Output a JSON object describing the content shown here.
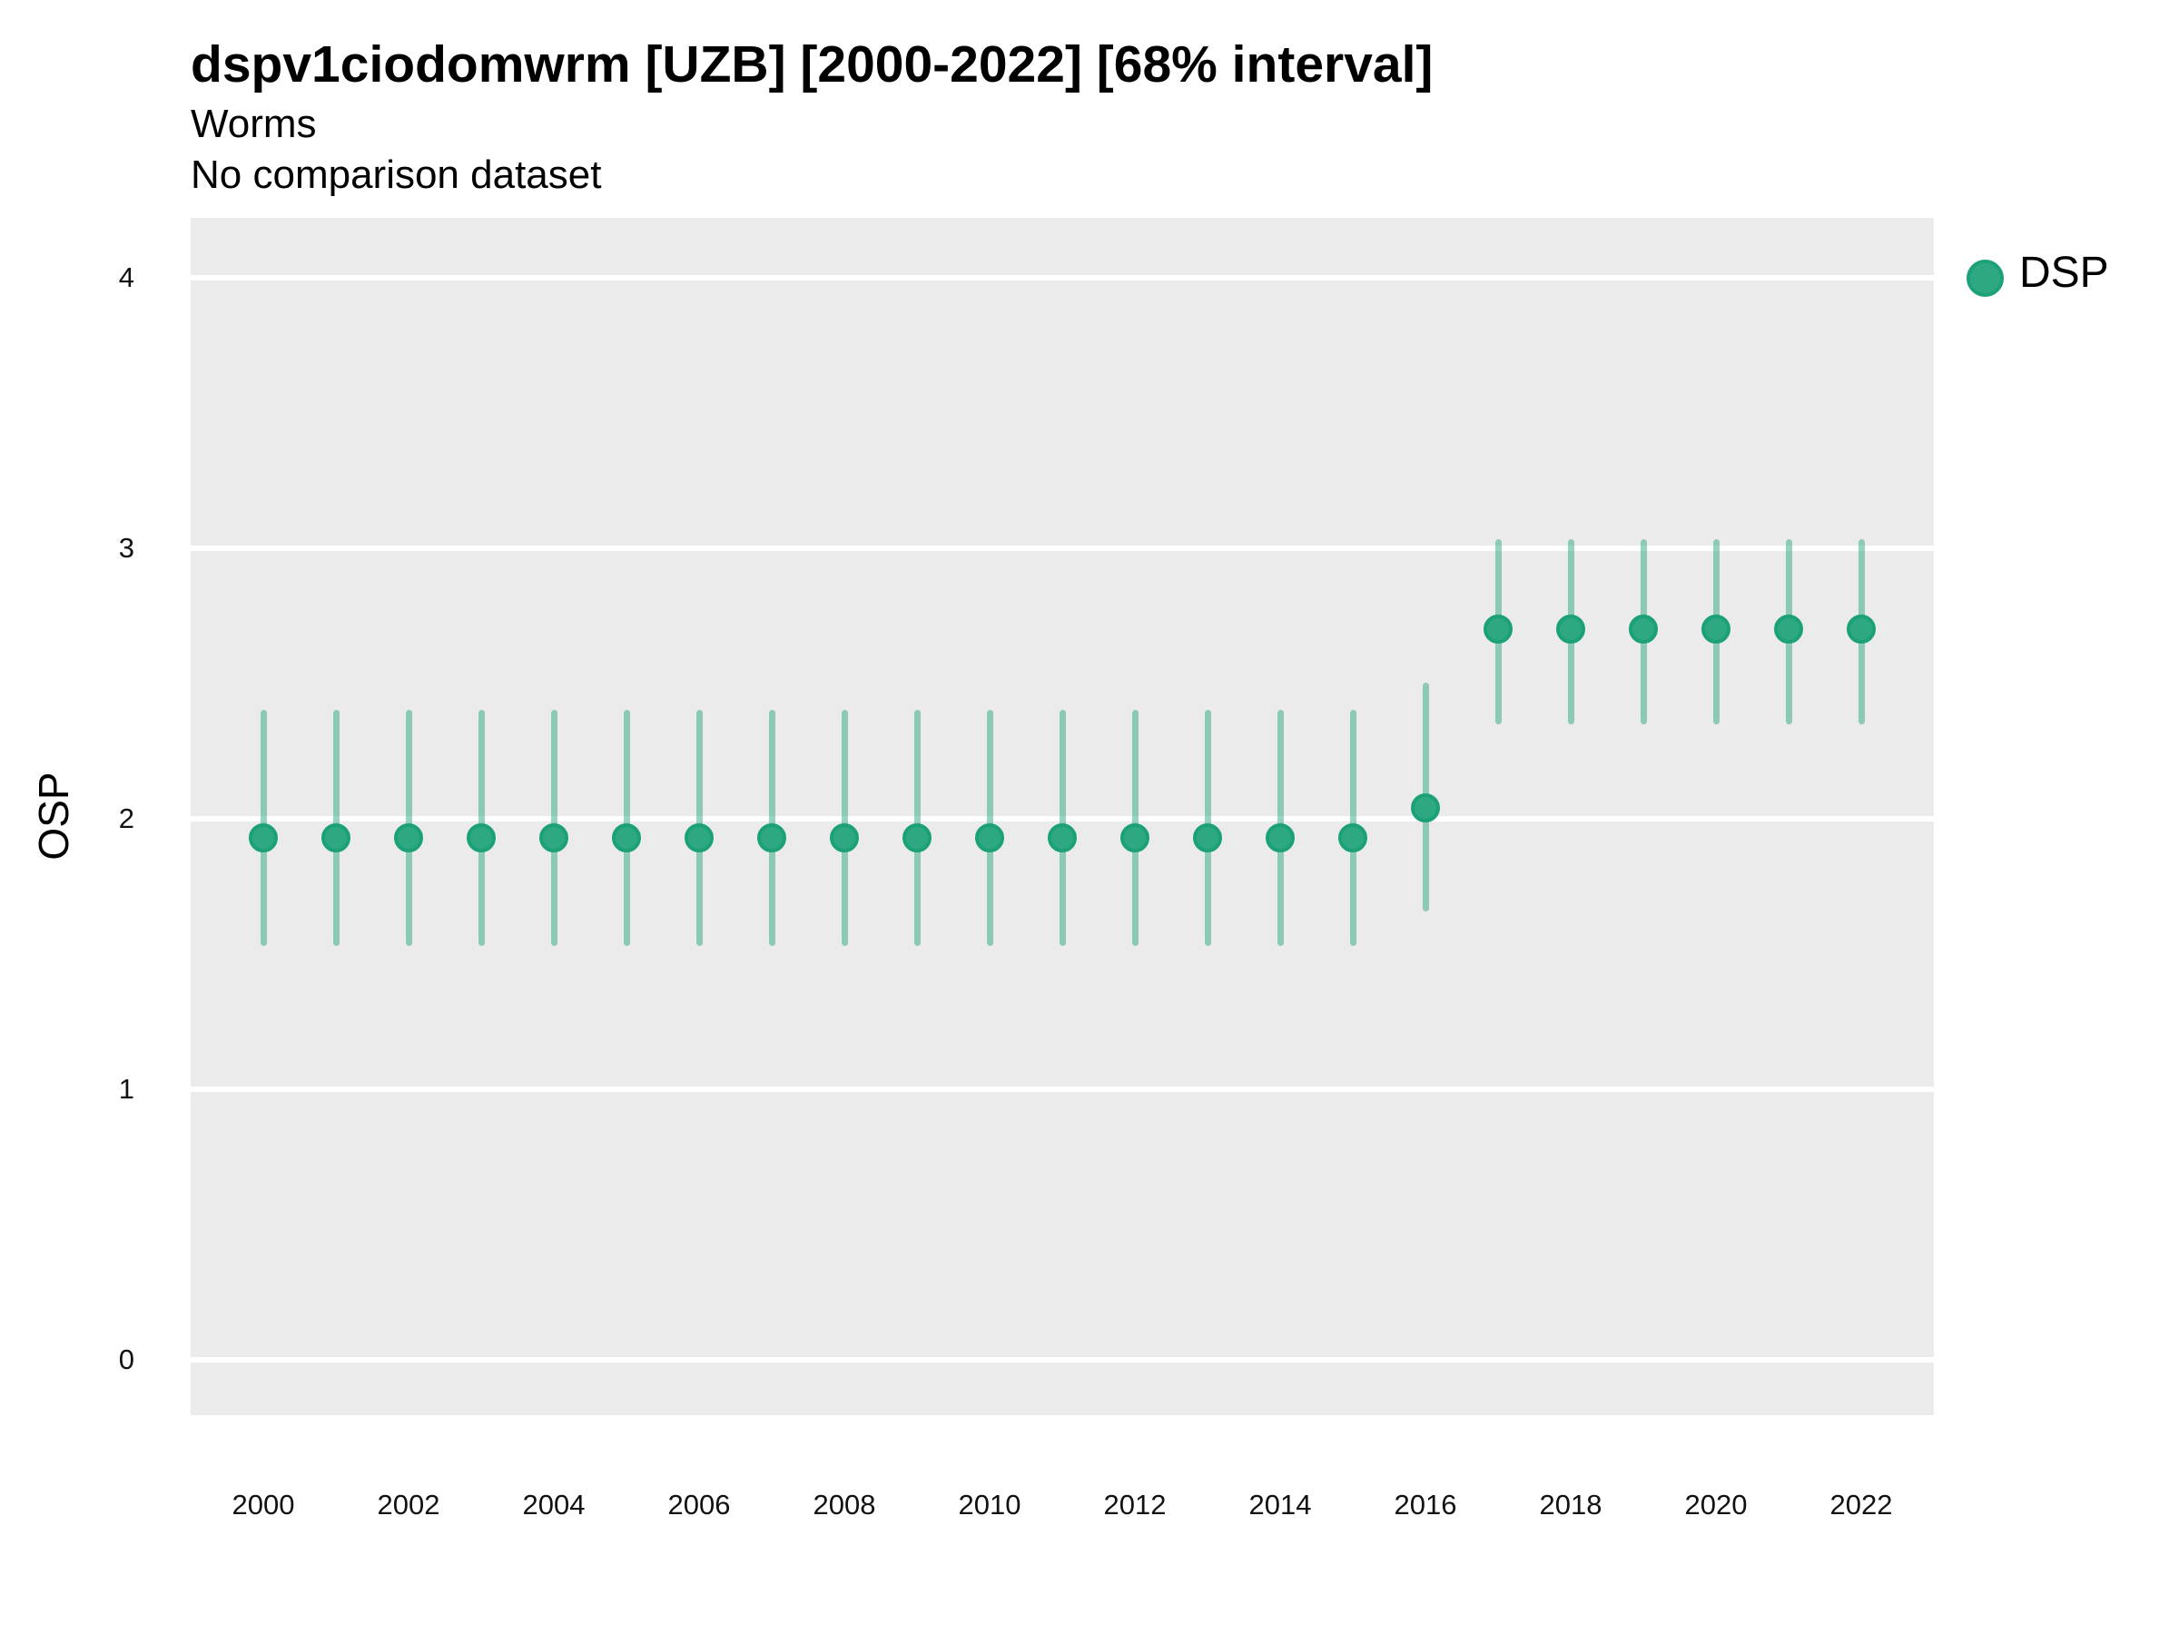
{
  "header": {
    "title": "dspv1ciodomwrm [UZB] [2000-2022] [68% interval]",
    "subtitle": "Worms",
    "note": "No comparison dataset"
  },
  "legend": {
    "position": "right-top",
    "items": [
      {
        "label": "DSP",
        "color": "#2EA883"
      }
    ]
  },
  "chart_data": {
    "type": "scatter",
    "title": "dspv1ciodomwrm [UZB] [2000-2022] [68% interval]",
    "subtitle": "Worms",
    "note": "No comparison dataset",
    "interval": "68%",
    "xlabel": "",
    "ylabel": "OSP",
    "x": [
      2000,
      2001,
      2002,
      2003,
      2004,
      2005,
      2006,
      2007,
      2008,
      2009,
      2010,
      2011,
      2012,
      2013,
      2014,
      2015,
      2016,
      2017,
      2018,
      2019,
      2020,
      2021,
      2022
    ],
    "series": [
      {
        "name": "DSP",
        "values": [
          1.93,
          1.93,
          1.93,
          1.93,
          1.93,
          1.93,
          1.93,
          1.93,
          1.93,
          1.93,
          1.93,
          1.93,
          1.93,
          1.93,
          1.93,
          1.93,
          2.04,
          2.7,
          2.7,
          2.7,
          2.7,
          2.7,
          2.7
        ],
        "ci_low": [
          1.54,
          1.54,
          1.54,
          1.54,
          1.54,
          1.54,
          1.54,
          1.54,
          1.54,
          1.54,
          1.54,
          1.54,
          1.54,
          1.54,
          1.54,
          1.54,
          1.67,
          2.36,
          2.36,
          2.36,
          2.36,
          2.36,
          2.36
        ],
        "ci_high": [
          2.39,
          2.39,
          2.39,
          2.39,
          2.39,
          2.39,
          2.39,
          2.39,
          2.39,
          2.39,
          2.39,
          2.39,
          2.39,
          2.39,
          2.39,
          2.39,
          2.49,
          3.02,
          3.02,
          3.02,
          3.02,
          3.02,
          3.02
        ]
      }
    ],
    "xticks": [
      2000,
      2002,
      2004,
      2006,
      2008,
      2010,
      2012,
      2014,
      2016,
      2018,
      2020,
      2022
    ],
    "yticks": [
      0,
      1,
      2,
      3,
      4
    ],
    "xlim": [
      1999,
      2023
    ],
    "ylim": [
      -0.205,
      4.22
    ],
    "grid": "horizontal-major-only",
    "legend_position": "right-top",
    "colors": {
      "point_fill": "#2EA883",
      "point_stroke": "#1CA078",
      "error_bar": "rgba(46,168,131,0.5)",
      "panel_bg": "#EBEBEB",
      "gridline": "#FFFFFF"
    }
  }
}
